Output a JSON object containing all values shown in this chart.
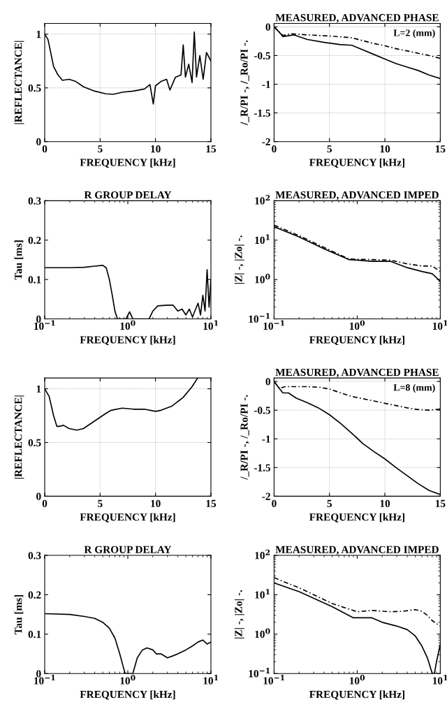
{
  "chart_data": [
    {
      "type": "line",
      "xlabel": "FREQUENCY [kHz]",
      "ylabel": "|REFLECTANCE|",
      "xlim": [
        0,
        15
      ],
      "ylim": [
        0,
        1.1
      ],
      "xticks": [
        0,
        5,
        10,
        15
      ],
      "yticks": [
        0,
        0.5,
        1
      ],
      "grid": true,
      "series": [
        {
          "color": "#000000",
          "line_style": "solid",
          "x": [
            0,
            0.3,
            0.6,
            0.8,
            1.2,
            1.6,
            2.2,
            2.8,
            3.5,
            4.5,
            5.5,
            6.2,
            7,
            8,
            9,
            9.5,
            9.8,
            10,
            10.5,
            11,
            11.3,
            11.8,
            12.3,
            12.5,
            12.7,
            13,
            13.3,
            13.5,
            13.7,
            14,
            14.3,
            14.6,
            15
          ],
          "values": [
            1,
            0.95,
            0.8,
            0.7,
            0.62,
            0.57,
            0.58,
            0.56,
            0.51,
            0.47,
            0.445,
            0.44,
            0.46,
            0.47,
            0.49,
            0.53,
            0.35,
            0.52,
            0.56,
            0.58,
            0.48,
            0.6,
            0.62,
            0.9,
            0.6,
            0.72,
            0.55,
            1.02,
            0.6,
            0.8,
            0.58,
            0.83,
            0.75
          ]
        }
      ]
    },
    {
      "type": "line",
      "title": "MEASURED, ADVANCED PHASE",
      "xlabel": "FREQUENCY [kHz]",
      "ylabel": "/_R/PI -, /_Ro/PI -.",
      "xlim": [
        0,
        15
      ],
      "ylim": [
        -2,
        0.06
      ],
      "xticks": [
        0,
        5,
        10,
        15
      ],
      "yticks": [
        0,
        -0.5,
        -1,
        -1.5,
        -2
      ],
      "grid": true,
      "annotations": [
        "L=2 (mm)"
      ],
      "series": [
        {
          "color": "#000000",
          "line_style": "solid",
          "x": [
            0,
            0.5,
            0.8,
            1.8,
            3,
            4.5,
            6,
            7,
            8,
            9,
            10,
            11,
            12,
            13,
            14,
            15
          ],
          "values": [
            0,
            -0.1,
            -0.17,
            -0.14,
            -0.22,
            -0.27,
            -0.31,
            -0.32,
            -0.4,
            -0.48,
            -0.56,
            -0.64,
            -0.7,
            -0.76,
            -0.84,
            -0.9
          ]
        },
        {
          "color": "#000000",
          "line_style": "dashed",
          "x": [
            0,
            0.8,
            1.5,
            3,
            5,
            7,
            8,
            9,
            10,
            11,
            12,
            13,
            14,
            15
          ],
          "values": [
            0,
            -0.15,
            -0.12,
            -0.14,
            -0.16,
            -0.19,
            -0.24,
            -0.29,
            -0.33,
            -0.38,
            -0.42,
            -0.46,
            -0.5,
            -0.55
          ]
        }
      ]
    },
    {
      "type": "line",
      "title": "R GROUP DELAY",
      "xlabel": "FREQUENCY [kHz]",
      "ylabel": "Tau [ms]",
      "log": "x",
      "xlim": [
        0.1,
        10
      ],
      "ylim": [
        0,
        0.3
      ],
      "xticks": [
        {
          "value": 0.1,
          "label": "10$^{−1}$"
        },
        {
          "value": 1,
          "label": "10$^{0}$"
        },
        {
          "value": 10,
          "label": "10$^{1}$"
        }
      ],
      "yticks": [
        0,
        0.1,
        0.2,
        0.3
      ],
      "series": [
        {
          "color": "#000000",
          "line_style": "solid",
          "x": [
            0.1,
            0.2,
            0.3,
            0.4,
            0.5,
            0.55,
            0.6,
            0.65,
            0.7,
            0.75,
            0.95,
            1.05,
            1.15,
            1.8,
            2,
            2.3,
            3,
            3.5,
            4,
            4.5,
            5,
            5.5,
            6,
            7,
            7.5,
            8,
            8.5,
            9,
            9.5,
            10
          ],
          "values": [
            0.13,
            0.13,
            0.131,
            0.134,
            0.136,
            0.13,
            0.1,
            0.06,
            0.02,
            0,
            0,
            0.018,
            0,
            0,
            0.02,
            0.033,
            0.035,
            0.035,
            0.02,
            0.025,
            0.01,
            0.025,
            0.005,
            0.04,
            0.01,
            0.06,
            0.02,
            0.125,
            0.03,
            0.1
          ]
        }
      ]
    },
    {
      "type": "line",
      "title": "MEASURED, ADVANCED IMPED",
      "xlabel": "FREQUENCY [kHz]",
      "ylabel": "|Z| -, |Zo| -.",
      "log": "xy",
      "xlim": [
        0.1,
        10
      ],
      "ylim": [
        0.1,
        100
      ],
      "xticks": [
        {
          "value": 0.1,
          "label": "10$^{−1}$"
        },
        {
          "value": 1,
          "label": "10$^{0}$"
        },
        {
          "value": 10,
          "label": "10$^{1}$"
        }
      ],
      "yticks": [
        {
          "value": 0.1,
          "label": "10$^{−1}$"
        },
        {
          "value": 1,
          "label": "10$^{0}$"
        },
        {
          "value": 10,
          "label": "10$^{1}$"
        },
        {
          "value": 100,
          "label": "10$^{2}$"
        }
      ],
      "series": [
        {
          "color": "#000000",
          "line_style": "solid",
          "x": [
            0.1,
            0.2,
            0.4,
            0.8,
            1,
            1.5,
            2.5,
            4,
            6,
            8,
            10
          ],
          "values": [
            22,
            12,
            6,
            3.2,
            3.1,
            2.9,
            2.9,
            2,
            1.6,
            1.4,
            0.9
          ]
        },
        {
          "color": "#000000",
          "line_style": "dashed",
          "x": [
            0.1,
            0.2,
            0.4,
            0.8,
            1.5,
            2.5,
            4,
            6,
            8,
            10
          ],
          "values": [
            24,
            13,
            6.5,
            3.3,
            3.2,
            3.1,
            2.5,
            2.2,
            2.2,
            1.6
          ]
        }
      ]
    },
    {
      "type": "line",
      "xlabel": "FREQUENCY [kHz]",
      "ylabel": "|REFLECTANCE|",
      "xlim": [
        0,
        15
      ],
      "ylim": [
        0,
        1.1
      ],
      "xticks": [
        0,
        5,
        10,
        15
      ],
      "yticks": [
        0,
        0.5,
        1
      ],
      "grid": true,
      "series": [
        {
          "color": "#000000",
          "line_style": "solid",
          "x": [
            0,
            0.4,
            0.8,
            1.1,
            1.3,
            1.7,
            2.2,
            2.9,
            3.5,
            4.5,
            5.5,
            6,
            7,
            8,
            9,
            10,
            10.5,
            11.5,
            12.5,
            13.3,
            13.8
          ],
          "values": [
            1,
            0.93,
            0.75,
            0.65,
            0.65,
            0.66,
            0.63,
            0.615,
            0.63,
            0.7,
            0.77,
            0.8,
            0.82,
            0.81,
            0.81,
            0.79,
            0.8,
            0.84,
            0.92,
            1.02,
            1.1
          ]
        }
      ]
    },
    {
      "type": "line",
      "title": "MEASURED, ADVANCED PHASE",
      "xlabel": "FREQUENCY [kHz]",
      "ylabel": "/_R/PI -, /_Ro/PI -.",
      "xlim": [
        0,
        15
      ],
      "ylim": [
        -2,
        0.06
      ],
      "xticks": [
        0,
        5,
        10,
        15
      ],
      "yticks": [
        0,
        -0.5,
        -1,
        -1.5,
        -2
      ],
      "grid": true,
      "annotations": [
        "L=8 (mm)"
      ],
      "series": [
        {
          "color": "#000000",
          "line_style": "solid",
          "x": [
            0,
            0.5,
            0.8,
            1.3,
            2,
            3,
            4,
            5,
            6,
            7,
            8,
            9,
            10,
            11,
            12,
            13,
            14,
            15
          ],
          "values": [
            0,
            -0.13,
            -0.2,
            -0.2,
            -0.29,
            -0.37,
            -0.46,
            -0.58,
            -0.73,
            -0.9,
            -1.08,
            -1.22,
            -1.35,
            -1.5,
            -1.64,
            -1.78,
            -1.9,
            -1.97
          ]
        },
        {
          "color": "#000000",
          "line_style": "dashed",
          "x": [
            0,
            0.5,
            1,
            3,
            4,
            5,
            6,
            7,
            8,
            9,
            10,
            11,
            12,
            13,
            14,
            15
          ],
          "values": [
            0,
            -0.12,
            -0.09,
            -0.09,
            -0.1,
            -0.13,
            -0.2,
            -0.26,
            -0.3,
            -0.34,
            -0.38,
            -0.42,
            -0.46,
            -0.49,
            -0.5,
            -0.48
          ]
        }
      ]
    },
    {
      "type": "line",
      "title": "R GROUP DELAY",
      "xlabel": "FREQUENCY [kHz]",
      "ylabel": "Tau [ms]",
      "log": "x",
      "xlim": [
        0.1,
        10
      ],
      "ylim": [
        0,
        0.3
      ],
      "xticks": [
        {
          "value": 0.1,
          "label": "10$^{−1}$"
        },
        {
          "value": 1,
          "label": "10$^{0}$"
        },
        {
          "value": 10,
          "label": "10$^{1}$"
        }
      ],
      "yticks": [
        0,
        0.1,
        0.2,
        0.3
      ],
      "series": [
        {
          "color": "#000000",
          "line_style": "solid",
          "x": [
            0.1,
            0.2,
            0.3,
            0.4,
            0.5,
            0.6,
            0.7,
            0.8,
            0.9,
            0.93,
            1.15,
            1.3,
            1.5,
            1.7,
            2,
            2.2,
            2.5,
            3,
            3.5,
            4,
            5,
            6,
            7,
            8,
            9,
            10
          ],
          "values": [
            0.152,
            0.15,
            0.145,
            0.14,
            0.13,
            0.115,
            0.09,
            0.05,
            0.01,
            0,
            0,
            0.04,
            0.06,
            0.065,
            0.06,
            0.05,
            0.05,
            0.04,
            0.045,
            0.05,
            0.06,
            0.07,
            0.08,
            0.085,
            0.075,
            0.08
          ]
        }
      ]
    },
    {
      "type": "line",
      "title": "MEASURED, ADVANCED IMPED",
      "xlabel": "FREQUENCY [kHz]",
      "ylabel": "|Z| -, |Zo| -.",
      "log": "xy",
      "xlim": [
        0.1,
        10
      ],
      "ylim": [
        0.1,
        100
      ],
      "xticks": [
        {
          "value": 0.1,
          "label": "10$^{−1}$"
        },
        {
          "value": 1,
          "label": "10$^{0}$"
        },
        {
          "value": 10,
          "label": "10$^{1}$"
        }
      ],
      "yticks": [
        {
          "value": 0.1,
          "label": "10$^{−1}$"
        },
        {
          "value": 1,
          "label": "10$^{0}$"
        },
        {
          "value": 10,
          "label": "10$^{1}$"
        },
        {
          "value": 100,
          "label": "10$^{2}$"
        }
      ],
      "series": [
        {
          "color": "#000000",
          "line_style": "solid",
          "x": [
            0.1,
            0.2,
            0.5,
            0.9,
            1.5,
            2,
            3,
            4,
            5,
            6,
            7,
            8,
            8.5,
            9,
            10
          ],
          "values": [
            20,
            12,
            5,
            2.6,
            2.6,
            2,
            1.6,
            1.3,
            0.9,
            0.5,
            0.25,
            0.1,
            0.1,
            0.2,
            0.55
          ]
        },
        {
          "color": "#000000",
          "line_style": "dashed",
          "x": [
            0.1,
            0.2,
            0.5,
            1,
            1.5,
            2.5,
            3.5,
            5,
            6,
            7,
            8,
            10
          ],
          "values": [
            27,
            15,
            6,
            3.7,
            4,
            3.7,
            3.8,
            4.2,
            3.8,
            3,
            2.2,
            1.6
          ]
        }
      ]
    }
  ]
}
